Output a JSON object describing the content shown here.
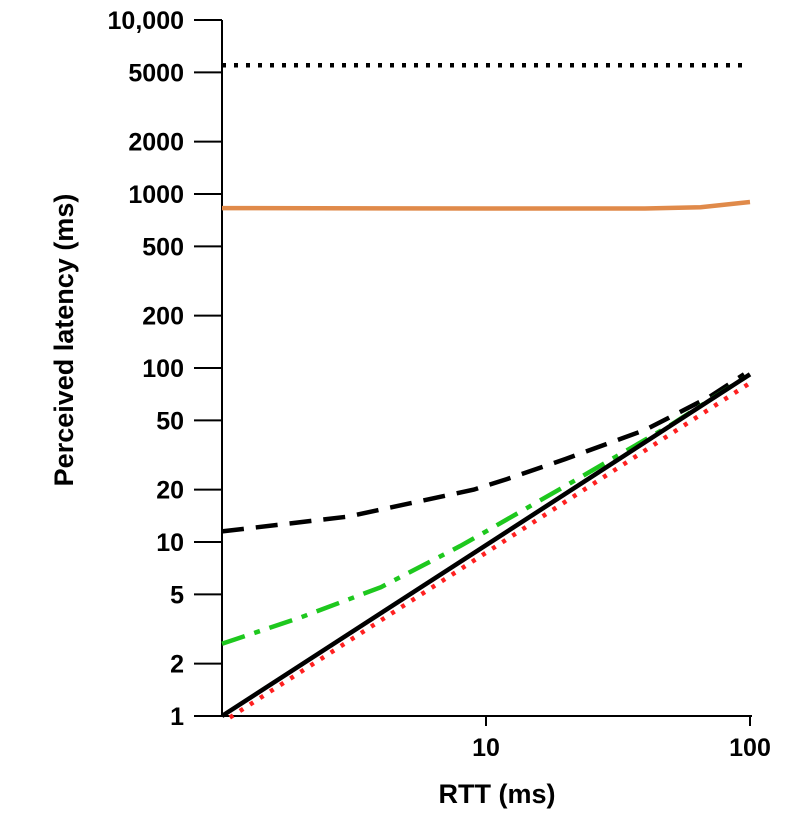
{
  "chart_data": {
    "type": "line",
    "title": "",
    "xlabel": "RTT (ms)",
    "ylabel": "Perceived latency (ms)",
    "x_scale": "log",
    "y_scale": "log",
    "xlim": [
      1,
      100
    ],
    "ylim": [
      1,
      10000
    ],
    "x_ticks": [
      10,
      100
    ],
    "x_tick_labels": [
      "10",
      "100"
    ],
    "y_ticks": [
      1,
      2,
      5,
      10,
      20,
      50,
      100,
      200,
      500,
      1000,
      2000,
      5000,
      10000
    ],
    "y_tick_labels": [
      "1",
      "2",
      "5",
      "10",
      "20",
      "50",
      "100",
      "200",
      "500",
      "1000",
      "2000",
      "5000",
      "10,000"
    ],
    "grid": false,
    "legend": "none",
    "series": [
      {
        "x": [
          1,
          100
        ],
        "y": [
          5500,
          5500
        ],
        "color": "#000000",
        "style": "dotted"
      },
      {
        "x": [
          1,
          10,
          40,
          65,
          100
        ],
        "y": [
          830,
          825,
          825,
          840,
          900
        ],
        "color": "#e08a4a",
        "style": "solid"
      },
      {
        "x": [
          1,
          3,
          9,
          12,
          20,
          40,
          70,
          95
        ],
        "y": [
          11.5,
          14,
          20,
          23,
          30,
          44,
          68,
          92
        ],
        "color": "#000000",
        "style": "dashed"
      },
      {
        "x": [
          1,
          2,
          4,
          8,
          10,
          20,
          50,
          100
        ],
        "y": [
          2.6,
          3.7,
          5.5,
          9.5,
          11.5,
          21,
          47,
          92
        ],
        "color": "#1ec81e",
        "style": "dashdot"
      },
      {
        "x": [
          1,
          100
        ],
        "y": [
          1,
          92
        ],
        "color": "#000000",
        "style": "solid"
      },
      {
        "x": [
          1.07,
          100
        ],
        "y": [
          0.98,
          82
        ],
        "color": "#ff2020",
        "style": "dotted"
      }
    ]
  }
}
